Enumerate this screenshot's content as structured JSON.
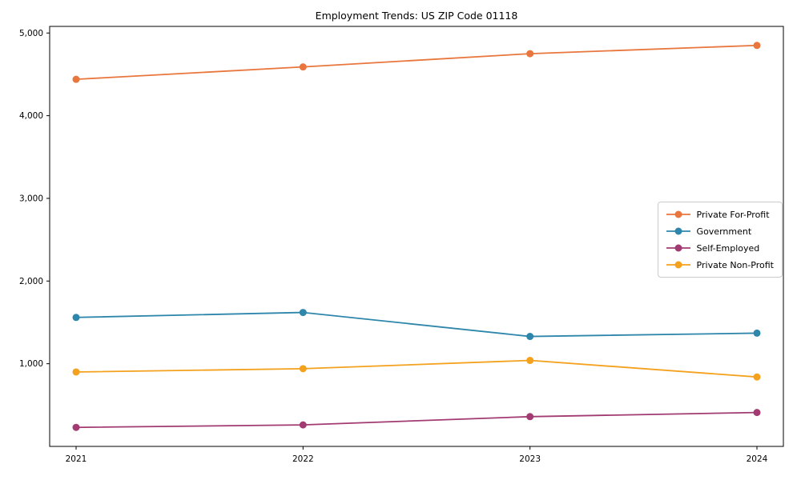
{
  "chart_data": {
    "type": "line",
    "title": "Employment Trends: US ZIP Code 01118",
    "xlabel": "",
    "ylabel": "",
    "grid": false,
    "legend_position": "center right",
    "categories": [
      "2021",
      "2022",
      "2023",
      "2024"
    ],
    "series": [
      {
        "name": "Private For-Profit",
        "color": "#E8763D",
        "values": [
          4440,
          4590,
          4750,
          4850
        ]
      },
      {
        "name": "Government",
        "color": "#2E86AB",
        "values": [
          1560,
          1620,
          1330,
          1370
        ]
      },
      {
        "name": "Self-Employed",
        "color": "#A23B72",
        "values": [
          230,
          260,
          360,
          410
        ]
      },
      {
        "name": "Private Non-Profit",
        "color": "#F4A11D",
        "values": [
          900,
          940,
          1040,
          840
        ]
      }
    ],
    "yticks": [
      {
        "value": 1000,
        "label": "1,000"
      },
      {
        "value": 2000,
        "label": "2,000"
      },
      {
        "value": 3000,
        "label": "3,000"
      },
      {
        "value": 4000,
        "label": "4,000"
      },
      {
        "value": 5000,
        "label": "5,000"
      }
    ],
    "ylim": [
      0,
      5080
    ]
  }
}
